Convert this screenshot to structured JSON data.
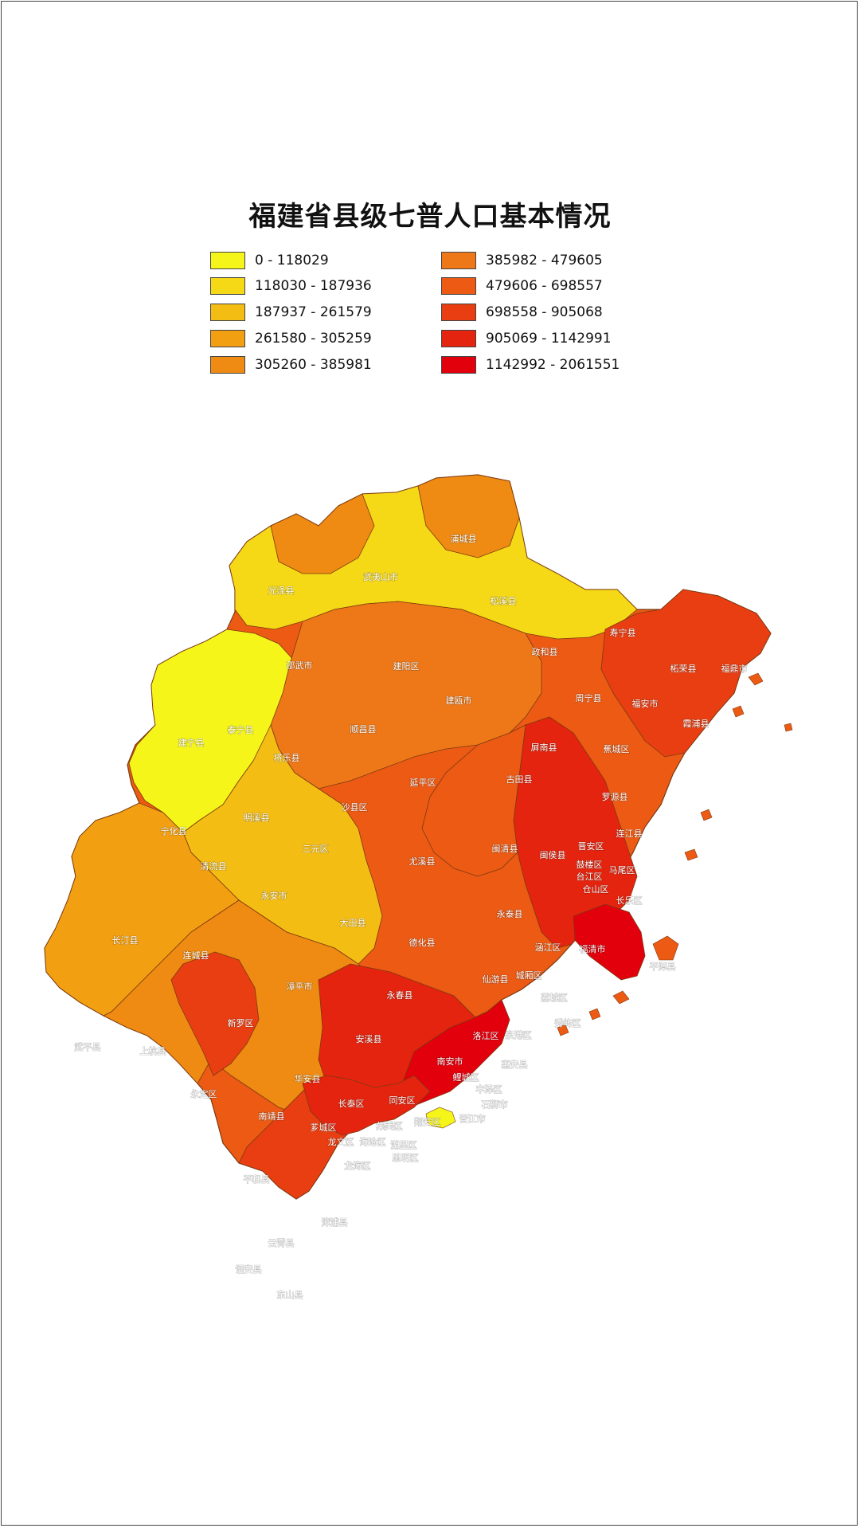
{
  "title": "福建省县级七普人口基本情况",
  "legend": [
    {
      "label": "0 - 118029",
      "color": "#f6f51a"
    },
    {
      "label": "118030 - 187936",
      "color": "#f5d816"
    },
    {
      "label": "187937 - 261579",
      "color": "#f4bd14"
    },
    {
      "label": "261580 - 305259",
      "color": "#f29f12"
    },
    {
      "label": "305260 - 385981",
      "color": "#ef8a12"
    },
    {
      "label": "385982 - 479605",
      "color": "#ee7818"
    },
    {
      "label": "479606 - 698557",
      "color": "#ec5a14"
    },
    {
      "label": "698558 - 905068",
      "color": "#e93e12"
    },
    {
      "label": "905069 - 1142991",
      "color": "#e4240e"
    },
    {
      "label": "1142992 - 2061551",
      "color": "#e3000d"
    }
  ],
  "regions": [
    {
      "name": "浦城县",
      "class": 5,
      "label": "浦城县"
    },
    {
      "name": "武夷山市",
      "class": 2,
      "label": "武夷山市"
    },
    {
      "name": "光泽县",
      "class": 2,
      "label": "光泽县"
    },
    {
      "name": "松溪县",
      "class": 2,
      "label": "松溪县"
    },
    {
      "name": "建阳区",
      "class": 5,
      "label": "建阳区"
    },
    {
      "name": "邵武市",
      "class": 4,
      "label": "邵武市"
    },
    {
      "name": "政和县",
      "class": 2,
      "label": "政和县"
    },
    {
      "name": "寿宁县",
      "class": 2,
      "label": "寿宁县"
    },
    {
      "name": "柘荣县",
      "class": 1,
      "label": "柘荣县"
    },
    {
      "name": "福鼎市",
      "class": 6,
      "label": "福鼎市"
    },
    {
      "name": "建瓯市",
      "class": 5,
      "label": "建瓯市"
    },
    {
      "name": "周宁县",
      "class": 2,
      "label": "周宁县"
    },
    {
      "name": "福安市",
      "class": 6,
      "label": "福安市"
    },
    {
      "name": "霞浦县",
      "class": 6,
      "label": "霞浦县"
    },
    {
      "name": "泰宁县",
      "class": 1,
      "label": "泰宁县"
    },
    {
      "name": "建宁县",
      "class": 1,
      "label": "建宁县"
    },
    {
      "name": "顺昌县",
      "class": 2,
      "label": "顺昌县"
    },
    {
      "name": "将乐县",
      "class": 2,
      "label": "将乐县"
    },
    {
      "name": "屏南县",
      "class": 2,
      "label": "屏南县"
    },
    {
      "name": "蕉城区",
      "class": 7,
      "label": "蕉城区"
    },
    {
      "name": "延平区",
      "class": 5,
      "label": "延平区"
    },
    {
      "name": "古田县",
      "class": 4,
      "label": "古田县"
    },
    {
      "name": "罗源县",
      "class": 3,
      "label": "罗源县"
    },
    {
      "name": "宁化县",
      "class": 3,
      "label": "宁化县"
    },
    {
      "name": "明溪县",
      "class": 1,
      "label": "明溪县"
    },
    {
      "name": "沙县区",
      "class": 3,
      "label": "沙县区"
    },
    {
      "name": "三元区",
      "class": 2,
      "label": "三元区"
    },
    {
      "name": "闽侯县",
      "class": 9,
      "label": "闽侯县"
    },
    {
      "name": "连江县",
      "class": 7,
      "label": "连江县"
    },
    {
      "name": "晋安区",
      "class": 8,
      "label": "晋安区"
    },
    {
      "name": "鼓楼区",
      "class": 8,
      "label": "鼓楼区"
    },
    {
      "name": "台江区",
      "class": 8,
      "label": "台江区"
    },
    {
      "name": "马尾区",
      "class": 6,
      "label": "马尾区"
    },
    {
      "name": "仓山区",
      "class": 8,
      "label": "仓山区"
    },
    {
      "name": "清流县",
      "class": 1,
      "label": "清流县"
    },
    {
      "name": "尤溪县",
      "class": 5,
      "label": "尤溪县"
    },
    {
      "name": "闽清县",
      "class": 3,
      "label": "闽清县"
    },
    {
      "name": "永安市",
      "class": 5,
      "label": "永安市"
    },
    {
      "name": "长乐区",
      "class": 8,
      "label": "长乐区"
    },
    {
      "name": "永泰县",
      "class": 4,
      "label": "永泰县"
    },
    {
      "name": "长汀县",
      "class": 6,
      "label": "长汀县"
    },
    {
      "name": "大田县",
      "class": 4,
      "label": "大田县"
    },
    {
      "name": "福清市",
      "class": 10,
      "label": "福清市"
    },
    {
      "name": "连城县",
      "class": 3,
      "label": "连城县"
    },
    {
      "name": "德化县",
      "class": 5,
      "label": "德化县"
    },
    {
      "name": "涵江区",
      "class": 6,
      "label": "涵江区"
    },
    {
      "name": "平潭县",
      "class": 4,
      "label": "平潭县"
    },
    {
      "name": "仙游县",
      "class": 8,
      "label": "仙游县"
    },
    {
      "name": "城厢区",
      "class": 7,
      "label": "城厢区"
    },
    {
      "name": "漳平市",
      "class": 3,
      "label": "漳平市"
    },
    {
      "name": "永春县",
      "class": 6,
      "label": "永春县"
    },
    {
      "name": "荔城区",
      "class": 7,
      "label": "荔城区"
    },
    {
      "name": "新罗区",
      "class": 8,
      "label": "新罗区"
    },
    {
      "name": "秀屿区",
      "class": 7,
      "label": "秀屿区"
    },
    {
      "name": "武平县",
      "class": 4,
      "label": "武平县"
    },
    {
      "name": "安溪县",
      "class": 9,
      "label": "安溪县"
    },
    {
      "name": "洛江区",
      "class": 3,
      "label": "洛江区"
    },
    {
      "name": "泉港区",
      "class": 6,
      "label": "泉港区"
    },
    {
      "name": "上杭县",
      "class": 5,
      "label": "上杭县"
    },
    {
      "name": "惠安县",
      "class": 9,
      "label": "惠安县"
    },
    {
      "name": "南安市",
      "class": 10,
      "label": "南安市"
    },
    {
      "name": "鲤城区",
      "class": 7,
      "label": "鲤城区"
    },
    {
      "name": "华安县",
      "class": 2,
      "label": "华安县"
    },
    {
      "name": "丰泽区",
      "class": 8,
      "label": "丰泽区"
    },
    {
      "name": "永定区",
      "class": 5,
      "label": "永定区"
    },
    {
      "name": "长泰区",
      "class": 3,
      "label": "长泰区"
    },
    {
      "name": "同安区",
      "class": 8,
      "label": "同安区"
    },
    {
      "name": "石狮市",
      "class": 8,
      "label": "石狮市"
    },
    {
      "name": "南靖县",
      "class": 5,
      "label": "南靖县"
    },
    {
      "name": "集美区",
      "class": 9,
      "label": "集美区"
    },
    {
      "name": "翔安区",
      "class": 8,
      "label": "翔安区"
    },
    {
      "name": "晋江市",
      "class": 10,
      "label": "晋江市"
    },
    {
      "name": "芗城区",
      "class": 6,
      "label": "芗城区"
    },
    {
      "name": "龙文区",
      "class": 6,
      "label": "龙文区"
    },
    {
      "name": "海沧区",
      "class": 8,
      "label": "海沧区"
    },
    {
      "name": "湖里区",
      "class": 9,
      "label": "湖里区"
    },
    {
      "name": "思明区",
      "class": 9,
      "label": "思明区"
    },
    {
      "name": "金门县",
      "class": 1,
      "label": ""
    },
    {
      "name": "平和县",
      "class": 6,
      "label": "平和县"
    },
    {
      "name": "龙海区",
      "class": 9,
      "label": "龙海区"
    },
    {
      "name": "漳浦县",
      "class": 8,
      "label": "漳浦县"
    },
    {
      "name": "云霄县",
      "class": 6,
      "label": "云霄县"
    },
    {
      "name": "诏安县",
      "class": 7,
      "label": "诏安县"
    },
    {
      "name": "东山县",
      "class": 3,
      "label": "东山县"
    }
  ]
}
